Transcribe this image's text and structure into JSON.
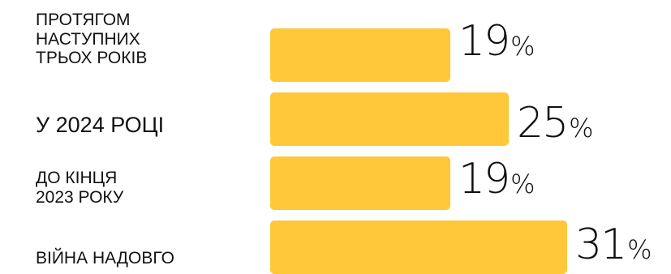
{
  "chart_data": {
    "type": "bar",
    "orientation": "horizontal",
    "categories": [
      "ПРОТЯГОМ\nНАСТУПНИХ\nТРЬОХ РОКІВ",
      "У 2024 РОЦІ",
      "ДО КІНЦЯ\n2023 РОКУ",
      "ВІЙНА НАДОВГО"
    ],
    "values": [
      19,
      25,
      19,
      31
    ],
    "value_suffix": "%",
    "bar_color": "#FFC83A",
    "xlim": [
      0,
      100
    ],
    "grid": false,
    "legend": "none"
  }
}
